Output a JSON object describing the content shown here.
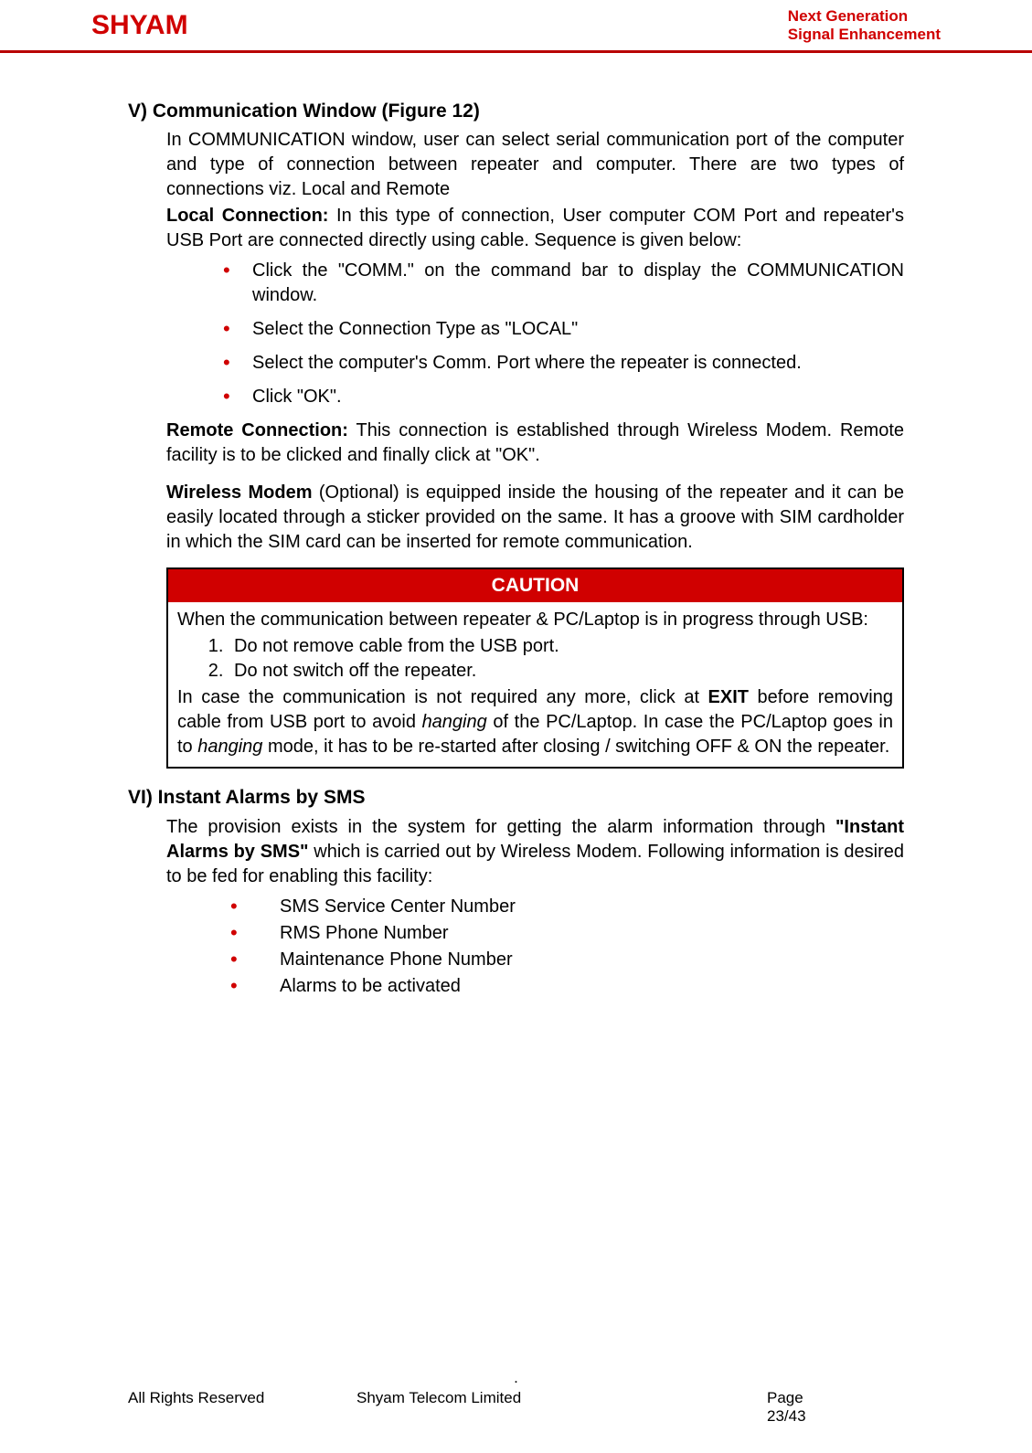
{
  "header": {
    "logo_text": "SHYAM",
    "tagline_line1": "Next Generation",
    "tagline_line2": "Signal Enhancement",
    "logo_color": "#d00000",
    "rule_color": "#b80000"
  },
  "section5": {
    "heading": "V) Communication Window (Figure 12)",
    "intro": "In COMMUNICATION window, user can select serial communication port of the computer and type of connection between repeater and computer. There are two types of connections viz. Local and Remote",
    "local_label": "Local Connection:",
    "local_text": " In this type of connection, User computer COM Port and repeater's USB Port are connected directly using cable. Sequence is given below:",
    "local_bullets": [
      "Click the \"COMM.\" on the command bar to display the COMMUNICATION window.",
      "Select the Connection Type as \"LOCAL\"",
      "Select the computer's Comm. Port where the repeater is connected.",
      "Click \"OK\"."
    ],
    "remote_label": "Remote Connection:",
    "remote_text": " This connection is established through Wireless Modem. Remote facility is to be clicked and finally click at \"OK\".",
    "wm_label": "Wireless Modem",
    "wm_text": " (Optional) is equipped inside the housing of the repeater and it can be easily located through a sticker provided on the same. It has a groove with SIM cardholder in which the SIM card can be inserted for remote communication."
  },
  "caution": {
    "title": "CAUTION",
    "lead": "When the communication between repeater & PC/Laptop is in progress through USB:",
    "items": [
      "Do not remove cable from the USB port.",
      "Do not switch off the repeater."
    ],
    "tail_pre": "In case the communication is not required any more, click at ",
    "tail_bold": "EXIT",
    "tail_post1": " before removing cable from USB port to avoid ",
    "tail_italic1": "hanging",
    "tail_post2": " of the PC/Laptop. In case the PC/Laptop goes in to ",
    "tail_italic2": "hanging",
    "tail_post3": " mode, it has to be re-started after closing / switching OFF & ON the repeater.",
    "bg_color": "#d00000",
    "text_color": "#ffffff"
  },
  "section6": {
    "heading": "VI) Instant Alarms by SMS",
    "intro_pre": "The provision exists in the system for getting the alarm information through ",
    "intro_bold": "\"Instant Alarms by SMS\"",
    "intro_post": " which is carried out by Wireless Modem.  Following information is desired to be fed for enabling this facility:",
    "bullets": [
      "SMS Service Center Number",
      "RMS Phone Number",
      "Maintenance Phone Number",
      "Alarms to be activated"
    ]
  },
  "footer": {
    "dot": ".",
    "left": "All Rights Reserved",
    "center": "Shyam Telecom Limited",
    "right_label": "Page",
    "right_value": "23/43"
  },
  "style": {
    "body_font_size_pt": 15,
    "heading_font_size_pt": 16,
    "bullet_color": "#d00000",
    "text_color": "#000000",
    "background_color": "#ffffff"
  }
}
